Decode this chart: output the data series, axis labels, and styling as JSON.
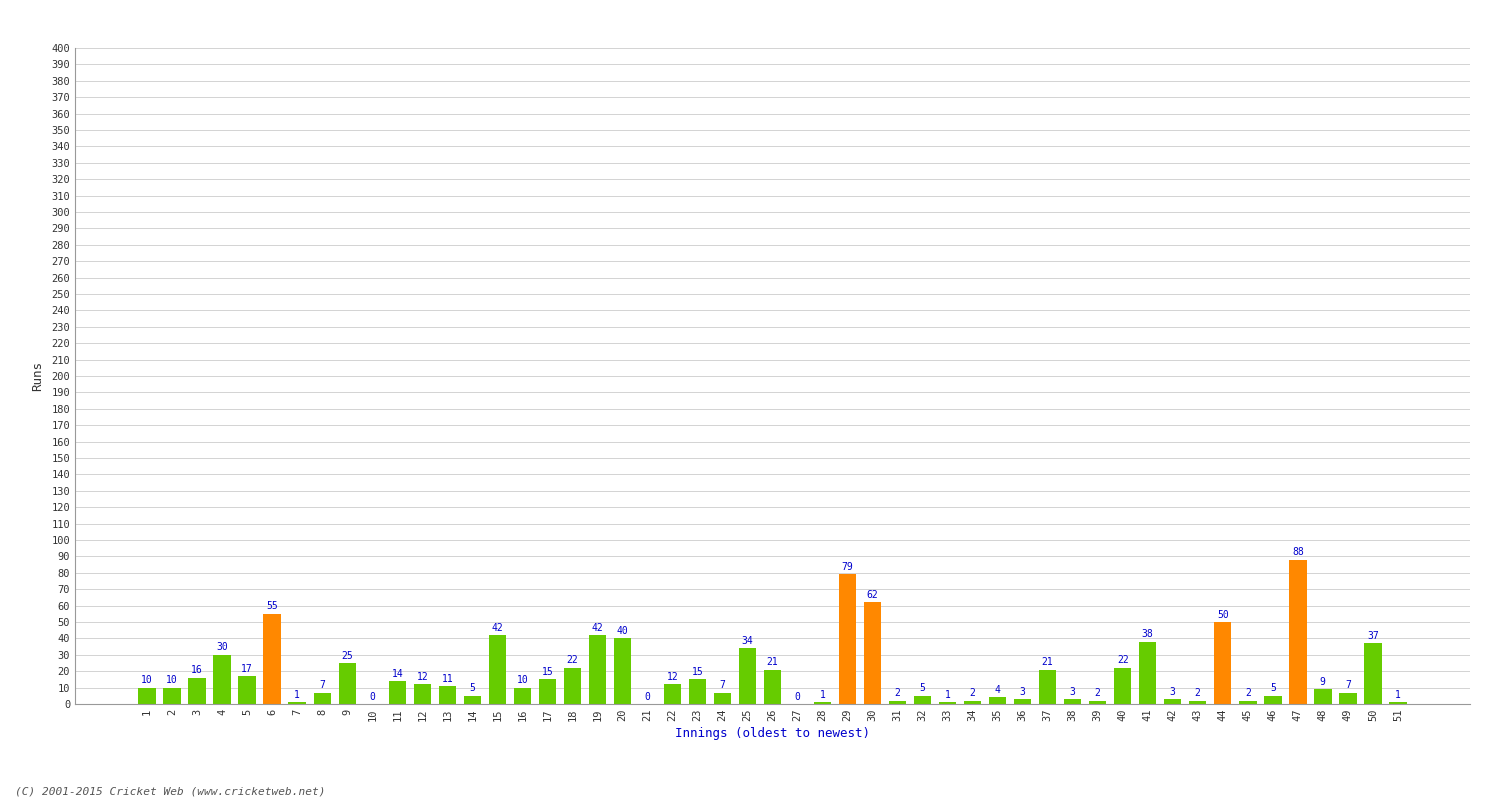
{
  "xlabel": "Innings (oldest to newest)",
  "ylabel": "Runs",
  "ylim": [
    0,
    400
  ],
  "yticks": [
    0,
    10,
    20,
    30,
    40,
    50,
    60,
    70,
    80,
    90,
    100,
    110,
    120,
    130,
    140,
    150,
    160,
    170,
    180,
    190,
    200,
    210,
    220,
    230,
    240,
    250,
    260,
    270,
    280,
    290,
    300,
    310,
    320,
    330,
    340,
    350,
    360,
    370,
    380,
    390,
    400
  ],
  "innings": [
    1,
    2,
    3,
    4,
    5,
    6,
    7,
    8,
    9,
    10,
    11,
    12,
    13,
    14,
    15,
    16,
    17,
    18,
    19,
    20,
    21,
    22,
    23,
    24,
    25,
    26,
    27,
    28,
    29,
    30,
    31,
    32,
    33,
    34,
    35,
    36,
    37,
    38,
    39,
    40,
    41,
    42,
    43,
    44,
    45,
    46,
    47,
    48,
    49,
    50,
    51
  ],
  "values": [
    10,
    10,
    16,
    30,
    17,
    55,
    1,
    7,
    25,
    0,
    14,
    12,
    11,
    5,
    42,
    10,
    15,
    22,
    42,
    40,
    0,
    12,
    15,
    7,
    34,
    21,
    0,
    1,
    79,
    62,
    2,
    5,
    1,
    2,
    4,
    3,
    21,
    3,
    2,
    22,
    38,
    3,
    2,
    50,
    2,
    5,
    88,
    9,
    7,
    37,
    1
  ],
  "orange_innings": [
    6,
    29,
    30,
    44,
    47
  ],
  "bar_color_green": "#66cc00",
  "bar_color_orange": "#ff8800",
  "label_color": "#0000cc",
  "background_color": "#ffffff",
  "grid_color": "#cccccc",
  "footer": "(C) 2001-2015 Cricket Web (www.cricketweb.net)"
}
